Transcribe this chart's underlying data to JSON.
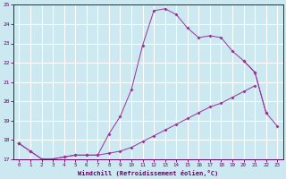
{
  "xlabel": "Windchill (Refroidissement éolien,°C)",
  "x_values": [
    0,
    1,
    2,
    3,
    4,
    5,
    6,
    7,
    8,
    9,
    10,
    11,
    12,
    13,
    14,
    15,
    16,
    17,
    18,
    19,
    20,
    21,
    22,
    23
  ],
  "line1": [
    17.8,
    17.4,
    17.0,
    17.0,
    17.1,
    17.2,
    17.2,
    17.2,
    18.3,
    19.2,
    20.6,
    22.9,
    24.7,
    24.8,
    24.5,
    23.8,
    23.3,
    23.4,
    23.3,
    22.6,
    22.1,
    21.5,
    19.4,
    null
  ],
  "line2": [
    17.8,
    17.4,
    17.0,
    17.0,
    17.1,
    17.2,
    17.2,
    17.2,
    17.3,
    17.4,
    17.6,
    17.9,
    18.2,
    18.5,
    18.8,
    19.1,
    19.4,
    19.7,
    19.9,
    20.2,
    20.5,
    20.8,
    null,
    null
  ],
  "line3": [
    17.8,
    null,
    null,
    null,
    null,
    null,
    null,
    null,
    null,
    null,
    null,
    null,
    null,
    null,
    null,
    null,
    null,
    null,
    null,
    null,
    22.1,
    21.5,
    19.4,
    18.7
  ],
  "ylim": [
    17,
    25
  ],
  "xlim_min": -0.5,
  "xlim_max": 23.5,
  "yticks": [
    17,
    18,
    19,
    20,
    21,
    22,
    23,
    24,
    25
  ],
  "xticks": [
    0,
    1,
    2,
    3,
    4,
    5,
    6,
    7,
    8,
    9,
    10,
    11,
    12,
    13,
    14,
    15,
    16,
    17,
    18,
    19,
    20,
    21,
    22,
    23
  ],
  "line_color": "#993399",
  "bg_color": "#cce8f0",
  "grid_color": "#ffffff",
  "font_color": "#660066",
  "tick_color": "#660066"
}
